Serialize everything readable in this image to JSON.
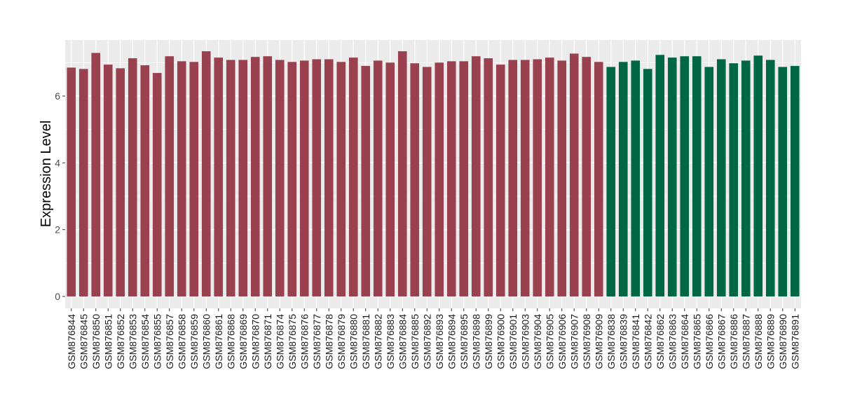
{
  "chart_data": {
    "type": "bar",
    "title": "",
    "xlabel": "",
    "ylabel": "Expression Level",
    "ylim": [
      0,
      7.6
    ],
    "yticks": [
      0,
      2,
      4,
      6
    ],
    "grid": true,
    "colors": {
      "group1": "#9a4150",
      "group2": "#006744",
      "panel": "#ebebeb",
      "grid": "#ffffff"
    },
    "categories": [
      "GSM876844",
      "GSM876845",
      "GSM876850",
      "GSM876851",
      "GSM876852",
      "GSM876853",
      "GSM876854",
      "GSM876855",
      "GSM876857",
      "GSM876858",
      "GSM876859",
      "GSM876860",
      "GSM876861",
      "GSM876868",
      "GSM876869",
      "GSM876870",
      "GSM876871",
      "GSM876874",
      "GSM876875",
      "GSM876876",
      "GSM876877",
      "GSM876878",
      "GSM876879",
      "GSM876880",
      "GSM876881",
      "GSM876882",
      "GSM876883",
      "GSM876884",
      "GSM876885",
      "GSM876892",
      "GSM876893",
      "GSM876894",
      "GSM876895",
      "GSM876898",
      "GSM876899",
      "GSM876900",
      "GSM876901",
      "GSM876903",
      "GSM876904",
      "GSM876905",
      "GSM876906",
      "GSM876907",
      "GSM876908",
      "GSM876909",
      "GSM876838",
      "GSM876839",
      "GSM876841",
      "GSM876842",
      "GSM876862",
      "GSM876863",
      "GSM876864",
      "GSM876865",
      "GSM876866",
      "GSM876867",
      "GSM876886",
      "GSM876887",
      "GSM876888",
      "GSM876889",
      "GSM876890",
      "GSM876891"
    ],
    "values": [
      6.85,
      6.81,
      7.29,
      6.94,
      6.83,
      7.13,
      6.92,
      6.69,
      7.19,
      7.04,
      7.02,
      7.34,
      7.15,
      7.08,
      7.08,
      7.17,
      7.19,
      7.08,
      7.02,
      7.06,
      7.1,
      7.1,
      7.02,
      7.15,
      6.9,
      7.06,
      7.0,
      7.34,
      6.98,
      6.87,
      7.0,
      7.04,
      7.04,
      7.19,
      7.13,
      6.94,
      7.08,
      7.08,
      7.1,
      7.15,
      7.06,
      7.27,
      7.17,
      7.02,
      6.87,
      7.02,
      7.06,
      6.81,
      7.23,
      7.15,
      7.19,
      7.19,
      6.87,
      7.1,
      6.98,
      7.06,
      7.21,
      7.08,
      6.87,
      6.9
    ],
    "groups": [
      "group1",
      "group1",
      "group1",
      "group1",
      "group1",
      "group1",
      "group1",
      "group1",
      "group1",
      "group1",
      "group1",
      "group1",
      "group1",
      "group1",
      "group1",
      "group1",
      "group1",
      "group1",
      "group1",
      "group1",
      "group1",
      "group1",
      "group1",
      "group1",
      "group1",
      "group1",
      "group1",
      "group1",
      "group1",
      "group1",
      "group1",
      "group1",
      "group1",
      "group1",
      "group1",
      "group1",
      "group1",
      "group1",
      "group1",
      "group1",
      "group1",
      "group1",
      "group1",
      "group1",
      "group2",
      "group2",
      "group2",
      "group2",
      "group2",
      "group2",
      "group2",
      "group2",
      "group2",
      "group2",
      "group2",
      "group2",
      "group2",
      "group2",
      "group2",
      "group2"
    ]
  }
}
